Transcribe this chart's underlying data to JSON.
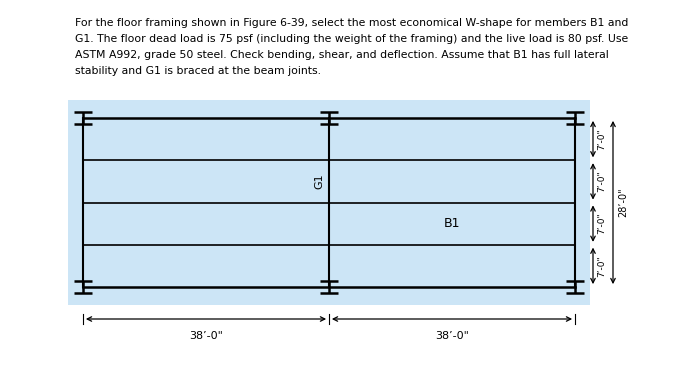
{
  "bg_color": "#ffffff",
  "diagram_bg": "#cce5f6",
  "line_color": "#000000",
  "text_color": "#000000",
  "header_line1": "For the floor framing shown in Figure 6-39, select the most economical W-shape for members B1 and",
  "header_line2": "G1. The floor dead load is 75 psf (including the weight of the framing) and the live load is 80 psf. Use",
  "header_line3": "ASTM A992, grade 50 steel. Check bending, shear, and deflection. Assume that B1 has full lateral",
  "header_line4": "stability and G1 is braced at the beam joints.",
  "label_B1": "B1",
  "label_G1": "G1",
  "dim_38_left": "38’-0\"",
  "dim_38_right": "38’-0\"",
  "dim_7_labels": [
    "7’-0\"",
    "7’-0\"",
    "7’-0\"",
    "7’-0\""
  ],
  "dim_28": "28’-0\""
}
